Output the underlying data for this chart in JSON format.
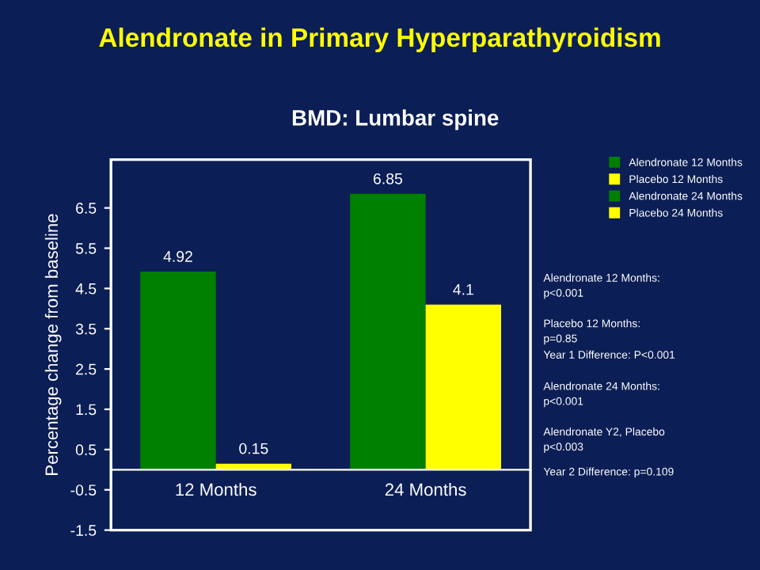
{
  "chart_data": {
    "type": "bar",
    "title": "Alendronate in Primary Hyperparathyroidism",
    "subtitle": "BMD: Lumbar spine",
    "ylabel": "Percentage change from baseline",
    "categories": [
      "12 Months",
      "24 Months"
    ],
    "series": [
      {
        "name": "Alendronate 12 Months",
        "color": "#008000",
        "values": [
          4.92,
          null
        ]
      },
      {
        "name": "Placebo 12 Months",
        "color": "#ffff00",
        "values": [
          0.15,
          null
        ]
      },
      {
        "name": "Alendronate 24 Months",
        "color": "#008000",
        "values": [
          null,
          6.85
        ]
      },
      {
        "name": "Placebo 24 Months",
        "color": "#ffff00",
        "values": [
          null,
          4.1
        ]
      }
    ],
    "ylim": [
      -1.5,
      7.7
    ],
    "yticks": [
      -1.5,
      -0.5,
      0.5,
      1.5,
      2.5,
      3.5,
      4.5,
      5.5,
      6.5
    ],
    "data_labels": true,
    "legend": "top right",
    "grid": false,
    "annotations": [
      "Alendronate 12 Months:\np<0.001",
      "Placebo 12 Months:\np=0.85",
      "Year 1 Difference: P<0.001",
      "Alendronate 24 Months:\np<0.001",
      "Alendronate Y2, Placebo\np<0.003",
      "Year 2 Difference: p=0.109"
    ]
  }
}
